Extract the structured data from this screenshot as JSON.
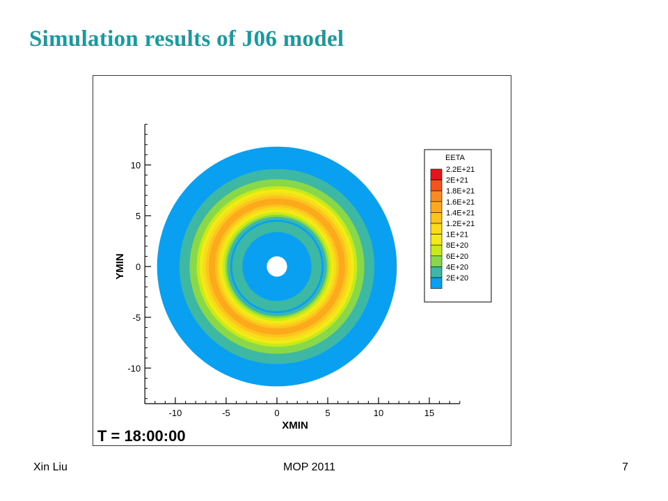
{
  "slide": {
    "title": "Simulation results of J06 model"
  },
  "footer": {
    "author": "Xin Liu",
    "event": "MOP 2011",
    "page_number": "7"
  },
  "chart_data": {
    "type": "heatmap",
    "subtype": "filled-contour-polar",
    "xlabel": "XMIN",
    "ylabel": "YMIN",
    "xlim": [
      -13,
      18
    ],
    "ylim": [
      -13.5,
      14
    ],
    "x_ticks": [
      -10,
      -5,
      0,
      5,
      10,
      15
    ],
    "y_ticks": [
      10,
      5,
      0,
      -5,
      -10
    ],
    "x_tick_labels": [
      "-10",
      "-5",
      "0",
      "5",
      "10",
      "15"
    ],
    "y_tick_labels": [
      "10",
      "5",
      "0",
      "-5",
      "-10"
    ],
    "time_label": "T = 18:00:00",
    "legend": {
      "title": "EETA",
      "placement": "right",
      "levels": [
        "2.2E+21",
        "2E+21",
        "1.8E+21",
        "1.6E+21",
        "1.4E+21",
        "1.2E+21",
        "1E+21",
        "8E+20",
        "6E+20",
        "4E+20",
        "2E+20"
      ],
      "colors": [
        "#e4141a",
        "#f4531c",
        "#fa8a24",
        "#fcaa1c",
        "#fcc41c",
        "#f8dc1c",
        "#f2ec14",
        "#c8ea1c",
        "#88d84a",
        "#3cb8a4",
        "#0aa0f2"
      ]
    },
    "rings": [
      {
        "r_outer": 11.8,
        "color": "#0aa0f2"
      },
      {
        "r_outer": 9.6,
        "color": "#3cb8a4"
      },
      {
        "r_outer": 8.6,
        "color": "#88d84a"
      },
      {
        "r_outer": 7.9,
        "color": "#c8ea1c"
      },
      {
        "r_outer": 7.6,
        "color": "#f2ec14"
      },
      {
        "r_outer": 7.3,
        "color": "#f8dc1c"
      },
      {
        "r_outer": 7.0,
        "color": "#fcc41c"
      },
      {
        "r_outer": 6.7,
        "color": "#fcaa1c"
      },
      {
        "r_outer": 6.1,
        "color": "#fcc41c"
      },
      {
        "r_outer": 5.85,
        "color": "#f8dc1c"
      },
      {
        "r_outer": 5.6,
        "color": "#f2ec14"
      },
      {
        "r_outer": 5.35,
        "color": "#c8ea1c"
      },
      {
        "r_outer": 5.1,
        "color": "#88d84a"
      },
      {
        "r_outer": 4.9,
        "color": "#3cb8a4"
      },
      {
        "r_outer": 4.6,
        "color": "#0aa0f2"
      },
      {
        "r_outer": 4.4,
        "color": "#3cb8a4"
      },
      {
        "r_outer": 3.4,
        "color": "#0aa0f2"
      },
      {
        "r_outer": 1.0,
        "color": "#ffffff"
      }
    ]
  }
}
